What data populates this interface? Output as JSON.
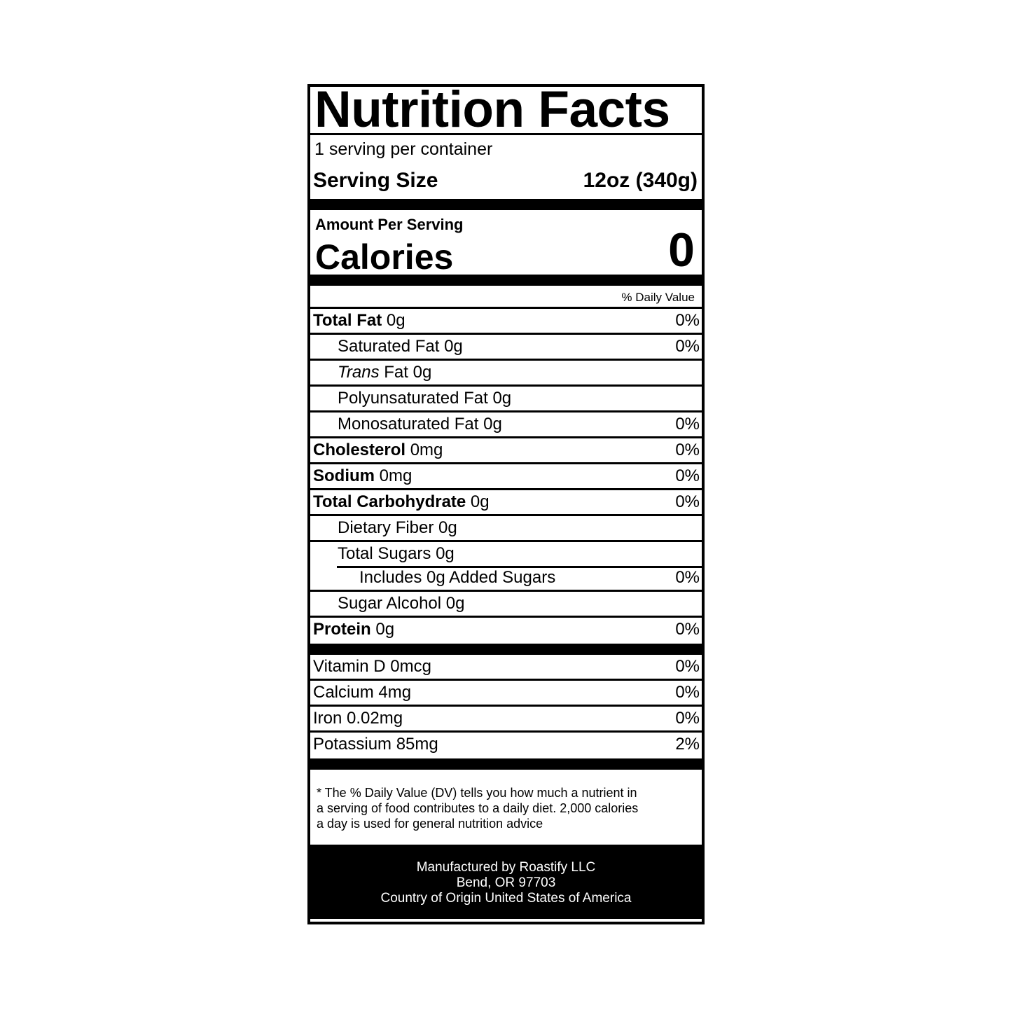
{
  "title": "Nutrition Facts",
  "servings_per_container": "1 serving per container",
  "serving_size_label": "Serving Size",
  "serving_size_value": "12oz (340g)",
  "amount_per_serving": "Amount Per Serving",
  "calories_label": "Calories",
  "calories_value": "0",
  "daily_value_header": "% Daily Value",
  "nutrients": [
    {
      "name": "Total Fat",
      "amount": "0g",
      "dv": "0%"
    },
    {
      "name": "Saturated Fat 0g",
      "dv": "0%"
    },
    {
      "name_italic": "Trans",
      "name": "Fat 0g"
    },
    {
      "name": "Polyunsaturated Fat 0g"
    },
    {
      "name": "Monosaturated Fat 0g",
      "dv": "0%"
    },
    {
      "name": "Cholesterol",
      "amount": "0mg",
      "dv": "0%"
    },
    {
      "name": "Sodium",
      "amount": "0mg",
      "dv": "0%"
    },
    {
      "name": "Total Carbohydrate",
      "amount": "0g",
      "dv": "0%"
    },
    {
      "name": "Dietary Fiber 0g"
    },
    {
      "name": "Total Sugars 0g"
    },
    {
      "name": "Includes 0g Added Sugars",
      "dv": "0%"
    },
    {
      "name": "Sugar Alcohol 0g"
    },
    {
      "name": "Protein",
      "amount": "0g",
      "dv": "0%"
    }
  ],
  "vitamins": [
    {
      "name": "Vitamin D 0mcg",
      "dv": "0%"
    },
    {
      "name": "Calcium 4mg",
      "dv": "0%"
    },
    {
      "name": "Iron 0.02mg",
      "dv": "0%"
    },
    {
      "name": "Potassium 85mg",
      "dv": "2%"
    }
  ],
  "footnote": [
    "* The % Daily Value (DV) tells you how much a nutrient in",
    "a serving of food contributes to a daily diet. 2,000 calories",
    "a day is used for general nutrition advice"
  ],
  "manufacturer": [
    "Manufactured by Roastify LLC",
    "Bend, OR 97703",
    "Country of Origin United States of America"
  ]
}
